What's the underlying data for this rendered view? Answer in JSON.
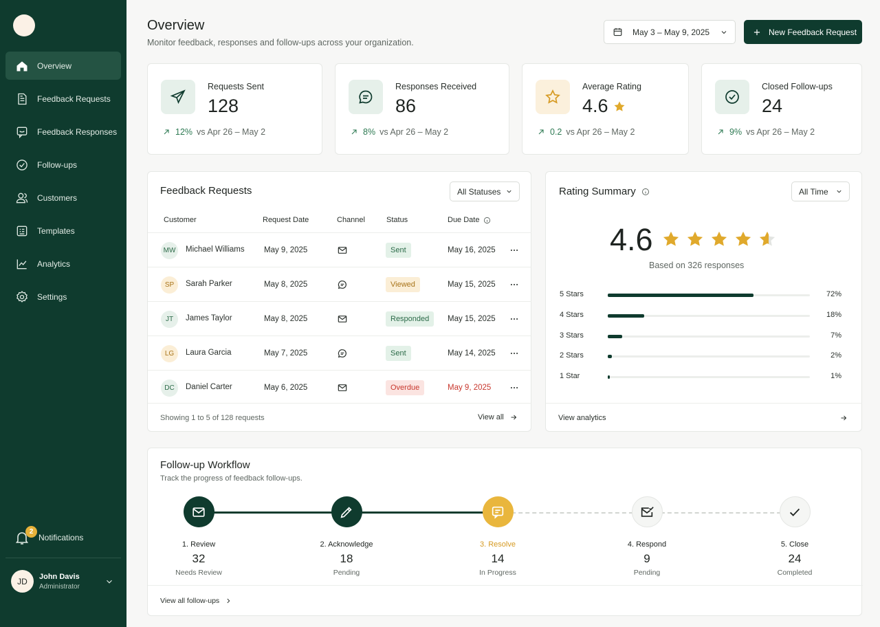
{
  "sidebar": {
    "items": [
      {
        "label": "Overview",
        "icon": "home-icon"
      },
      {
        "label": "Feedback Requests",
        "icon": "document-icon"
      },
      {
        "label": "Feedback Responses",
        "icon": "chat-icon"
      },
      {
        "label": "Follow-ups",
        "icon": "check-circle-icon"
      },
      {
        "label": "Customers",
        "icon": "users-icon"
      },
      {
        "label": "Templates",
        "icon": "template-icon"
      },
      {
        "label": "Analytics",
        "icon": "chart-icon"
      },
      {
        "label": "Settings",
        "icon": "gear-icon"
      }
    ],
    "notifications": {
      "label": "Notifications",
      "count": "2"
    },
    "user": {
      "initials": "JD",
      "name": "John Davis",
      "role": "Administrator"
    }
  },
  "header": {
    "title": "Overview",
    "subtitle": "Monitor feedback, responses and follow-ups across your organization.",
    "date_range": "May 3 – May 9, 2025",
    "new_button": "New Feedback Request"
  },
  "stats": [
    {
      "label": "Requests Sent",
      "value": "128",
      "delta": "12%",
      "compare": "vs Apr 26 – May 2",
      "icon": "send-icon"
    },
    {
      "label": "Responses Received",
      "value": "86",
      "delta": "8%",
      "compare": "vs Apr 26 – May 2",
      "icon": "chat-bubble-icon"
    },
    {
      "label": "Average Rating",
      "value": "4.6",
      "delta": "0.2",
      "compare": "vs Apr 26 – May 2",
      "icon": "star-icon"
    },
    {
      "label": "Closed Follow-ups",
      "value": "24",
      "delta": "9%",
      "compare": "vs Apr 26 – May 2",
      "icon": "check-circle-icon"
    }
  ],
  "requests": {
    "title": "Feedback Requests",
    "filter": "All Statuses",
    "columns": [
      "Customer",
      "Request Date",
      "Channel",
      "Status",
      "Due Date"
    ],
    "rows": [
      {
        "initials": "MW",
        "customer": "Michael Williams",
        "request_date": "May 9, 2025",
        "channel": "email",
        "status": "Sent",
        "due": "May 16, 2025"
      },
      {
        "initials": "SP",
        "customer": "Sarah Parker",
        "request_date": "May 8, 2025",
        "channel": "chat",
        "status": "Viewed",
        "due": "May 15, 2025"
      },
      {
        "initials": "JT",
        "customer": "James Taylor",
        "request_date": "May 8, 2025",
        "channel": "email",
        "status": "Responded",
        "due": "May 15, 2025"
      },
      {
        "initials": "LG",
        "customer": "Laura Garcia",
        "request_date": "May 7, 2025",
        "channel": "chat",
        "status": "Sent",
        "due": "May 14, 2025"
      },
      {
        "initials": "DC",
        "customer": "Daniel Carter",
        "request_date": "May 6, 2025",
        "channel": "email",
        "status": "Overdue",
        "due": "May 9, 2025"
      }
    ],
    "showing": "Showing 1 to 5 of 128 requests",
    "view_all": "View all"
  },
  "rating": {
    "title": "Rating Summary",
    "filter": "All Time",
    "average": "4.6",
    "stars": 4.6,
    "based_on": "Based on 326 responses",
    "distribution": [
      {
        "label": "5 Stars",
        "percent": "72%",
        "value": 72
      },
      {
        "label": "4 Stars",
        "percent": "18%",
        "value": 18
      },
      {
        "label": "3 Stars",
        "percent": "7%",
        "value": 7
      },
      {
        "label": "2 Stars",
        "percent": "2%",
        "value": 2
      },
      {
        "label": "1 Star",
        "percent": "1%",
        "value": 1
      }
    ],
    "view_analytics": "View analytics"
  },
  "workflow": {
    "title": "Follow-up Workflow",
    "subtitle": "Track the progress of feedback follow-ups.",
    "steps": [
      {
        "name": "1. Review",
        "count": "32",
        "status": "Needs Review",
        "icon": "mail-icon",
        "state": "done"
      },
      {
        "name": "2. Acknowledge",
        "count": "18",
        "status": "Pending",
        "icon": "pencil-icon",
        "state": "done"
      },
      {
        "name": "3. Resolve",
        "count": "14",
        "status": "In Progress",
        "icon": "chat-icon",
        "state": "active"
      },
      {
        "name": "4. Respond",
        "count": "9",
        "status": "Pending",
        "icon": "mail-check-icon",
        "state": "todo"
      },
      {
        "name": "5. Close",
        "count": "24",
        "status": "Completed",
        "icon": "check-icon",
        "state": "todo"
      }
    ],
    "view_all": "View all follow-ups"
  },
  "colors": {
    "sidebar": "#0f3b2e",
    "accent": "#0f3b2e",
    "star": "#e0a92c",
    "active_step": "#e9b63d",
    "overdue": "#c8372d"
  }
}
